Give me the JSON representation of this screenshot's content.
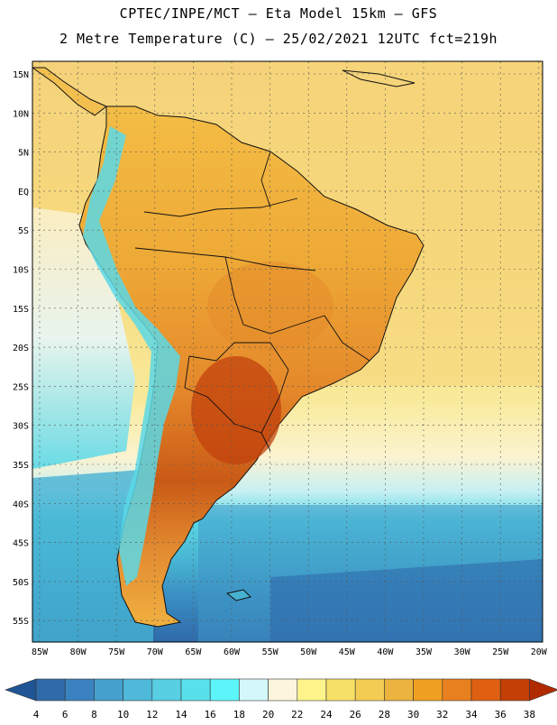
{
  "header": {
    "title_line1": "CPTEC/INPE/MCT –  Eta Model 15km – GFS",
    "title_line2": "2 Metre Temperature (C) – 25/02/2021 12UTC fct=219h"
  },
  "map": {
    "lat_labels": [
      "15N",
      "10N",
      "5N",
      "EQ",
      "5S",
      "10S",
      "15S",
      "20S",
      "25S",
      "30S",
      "35S",
      "40S",
      "45S",
      "50S",
      "55S"
    ],
    "lon_labels": [
      "85W",
      "80W",
      "75W",
      "70W",
      "65W",
      "60W",
      "55W",
      "50W",
      "45W",
      "40W",
      "35W",
      "30W",
      "25W",
      "20W"
    ]
  },
  "colorbar": {
    "labels": [
      "4",
      "6",
      "8",
      "10",
      "12",
      "14",
      "16",
      "18",
      "20",
      "22",
      "24",
      "26",
      "28",
      "30",
      "32",
      "34",
      "36",
      "38"
    ],
    "colors": [
      "#2f6aab",
      "#3a82bf",
      "#45a0cc",
      "#4fb9da",
      "#58cfe2",
      "#58e1ea",
      "#5cf5fa",
      "#d4f7fb",
      "#fdf6dc",
      "#fdf48c",
      "#f7e067",
      "#f3cc53",
      "#ecb43f",
      "#f0a020",
      "#e8801f",
      "#df6010",
      "#c43f05"
    ],
    "left_arrow_color": "#1f5595",
    "right_arrow_color": "#b02a00"
  }
}
